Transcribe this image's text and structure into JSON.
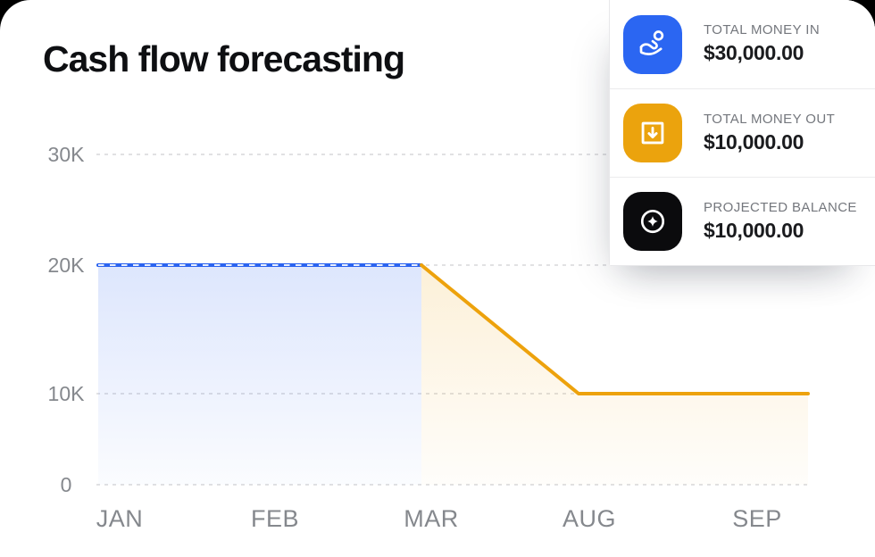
{
  "page": {
    "title": "Cash flow forecasting"
  },
  "stats": {
    "items": [
      {
        "label": "TOTAL MONEY IN",
        "value": "$30,000.00",
        "icon": "hand-coin-icon",
        "icon_bg": "#2B66F2"
      },
      {
        "label": "TOTAL MONEY OUT",
        "value": "$10,000.00",
        "icon": "arrow-down-box-icon",
        "icon_bg": "#EBA30D"
      },
      {
        "label": "PROJECTED BALANCE",
        "value": "$10,000.00",
        "icon": "sparkle-circle-icon",
        "icon_bg": "#0B0B0D"
      }
    ]
  },
  "chart_data": {
    "type": "area",
    "title": "Cash flow forecasting",
    "x_ticks": [
      "JAN",
      "FEB",
      "MAR",
      "AUG",
      "SEP"
    ],
    "y_ticks": [
      {
        "label": "30K",
        "value": 30000
      },
      {
        "label": "20K",
        "value": 20000
      },
      {
        "label": "10K",
        "value": 10000
      },
      {
        "label": "0",
        "value": 0
      }
    ],
    "ylim": [
      0,
      30000
    ],
    "grid": "horizontal-dashed",
    "grid_color": "#d7d7da",
    "axis_text_color": "#85888d",
    "legend": "none",
    "series": [
      {
        "name": "Total money in",
        "color": "#2B63F0",
        "line_style": "dashed",
        "area": true,
        "points": [
          {
            "x": "START",
            "y": 20000
          },
          {
            "x": "MAR",
            "y": 20000
          }
        ]
      },
      {
        "name": "Projected balance",
        "color": "#EDA20C",
        "line_style": "solid",
        "area": true,
        "points": [
          {
            "x": "MAR",
            "y": 20000
          },
          {
            "x": "AUG",
            "y": 10000
          },
          {
            "x": "END",
            "y": 10000
          }
        ]
      }
    ]
  }
}
